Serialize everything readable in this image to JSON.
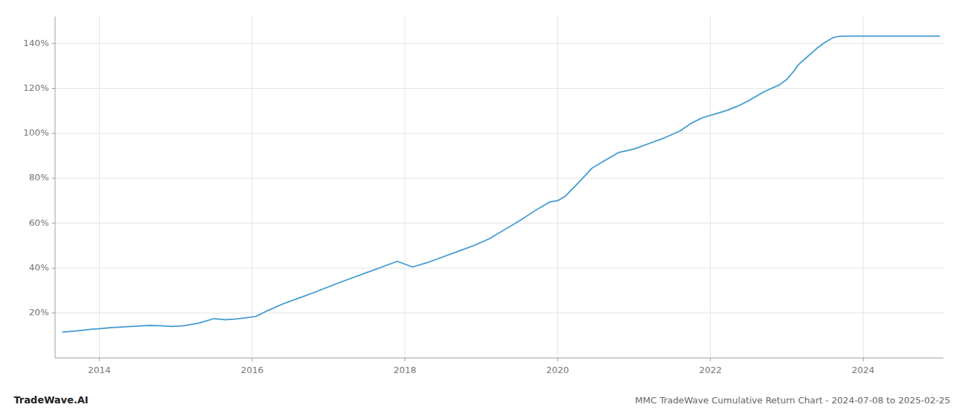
{
  "chart_data": {
    "type": "line",
    "title": "MMC TradeWave Cumulative Return Chart - 2024-07-08 to 2025-02-25",
    "annotations": [
      "TradeWave.AI"
    ],
    "color": "#4a9fd4",
    "grid": true,
    "xlim": [
      2013.42,
      2025.05
    ],
    "ylim": [
      0,
      152
    ],
    "xticks": [
      2014,
      2016,
      2018,
      2020,
      2022,
      2024
    ],
    "yticks": [
      {
        "value": 20,
        "label": "20%"
      },
      {
        "value": 40,
        "label": "40%"
      },
      {
        "value": 60,
        "label": "60%"
      },
      {
        "value": 80,
        "label": "80%"
      },
      {
        "value": 100,
        "label": "100%"
      },
      {
        "value": 120,
        "label": "120%"
      },
      {
        "value": 140,
        "label": "140%"
      }
    ],
    "x": [
      2013.52,
      2013.7,
      2013.9,
      2014.0,
      2014.15,
      2014.3,
      2014.5,
      2014.65,
      2014.8,
      2014.95,
      2015.1,
      2015.3,
      2015.5,
      2015.65,
      2015.75,
      2015.9,
      2016.05,
      2016.2,
      2016.4,
      2016.6,
      2016.8,
      2016.95,
      2017.1,
      2017.3,
      2017.5,
      2017.7,
      2017.9,
      2018.1,
      2018.3,
      2018.5,
      2018.7,
      2018.9,
      2019.1,
      2019.3,
      2019.5,
      2019.7,
      2019.9,
      2020.0,
      2020.1,
      2020.3,
      2020.45,
      2020.6,
      2020.8,
      2021.0,
      2021.2,
      2021.4,
      2021.6,
      2021.75,
      2021.9,
      2022.05,
      2022.2,
      2022.35,
      2022.5,
      2022.6,
      2022.7,
      2022.8,
      2022.9,
      2023.0,
      2023.1,
      2023.15,
      2023.2,
      2023.3,
      2023.4,
      2023.5,
      2023.6,
      2023.65,
      2023.7,
      2023.75,
      2023.8,
      2023.9,
      2024.0,
      2024.1,
      2024.2,
      2024.3,
      2024.4,
      2024.5,
      2024.6,
      2024.7,
      2024.8,
      2024.9,
      2025.0
    ],
    "values": [
      11.5,
      12.0,
      12.8,
      13.0,
      13.5,
      13.8,
      14.2,
      14.5,
      14.3,
      14.0,
      14.3,
      15.5,
      17.5,
      17.0,
      17.2,
      17.8,
      18.5,
      21.0,
      24.0,
      26.5,
      29.0,
      31.0,
      33.0,
      35.5,
      38.0,
      40.5,
      43.0,
      40.5,
      42.5,
      45.0,
      47.5,
      50.0,
      53.0,
      57.0,
      61.0,
      65.5,
      69.5,
      70.0,
      72.0,
      79.0,
      84.5,
      87.5,
      91.5,
      93.0,
      95.5,
      98.0,
      101.0,
      104.5,
      107.0,
      108.5,
      110.0,
      112.0,
      114.5,
      116.5,
      118.5,
      120.0,
      121.5,
      124.0,
      128.0,
      130.5,
      132.0,
      135.0,
      138.0,
      140.5,
      142.5,
      143.0,
      143.2,
      143.3,
      143.3,
      143.3,
      143.3,
      143.3,
      143.3,
      143.3,
      143.3,
      143.3,
      143.3,
      143.3,
      143.3,
      143.3,
      143.3
    ]
  }
}
